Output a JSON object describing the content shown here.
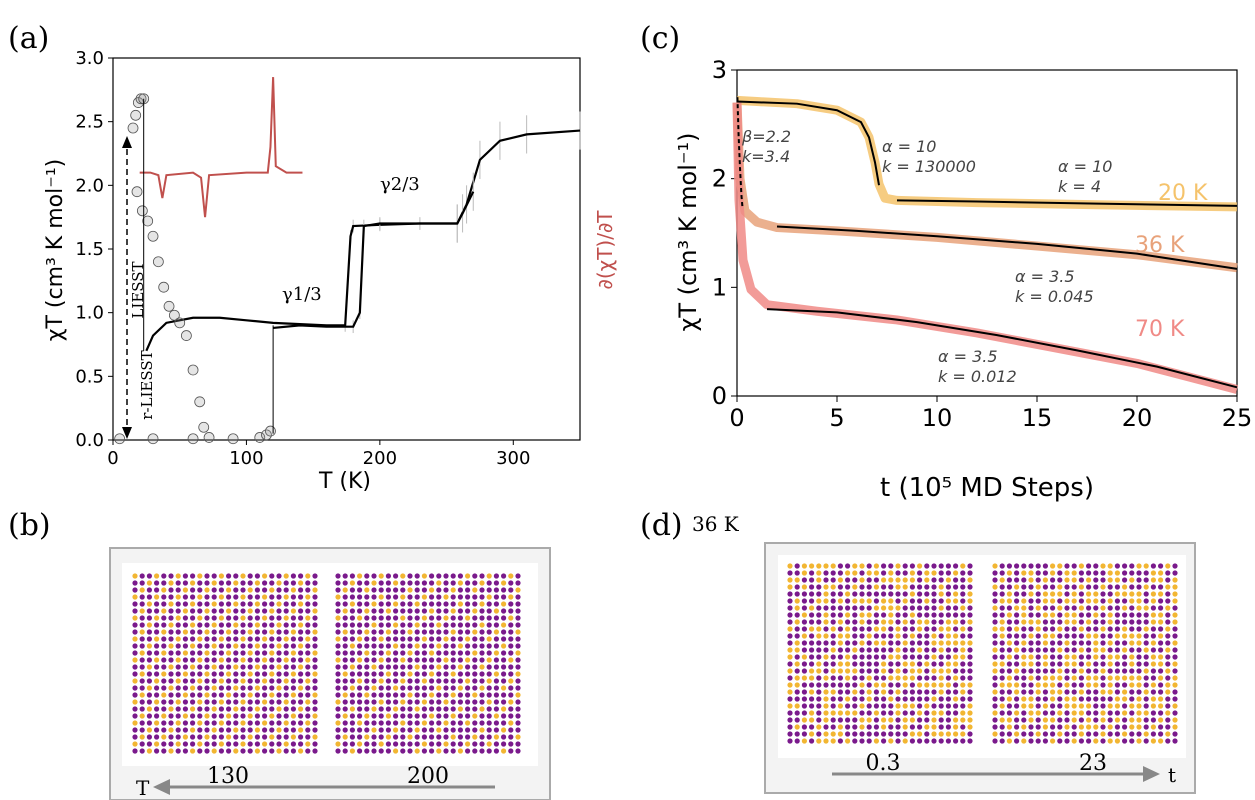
{
  "panel_labels": {
    "a": "(a)",
    "b": "(b)",
    "c": "(c)",
    "d": "(d)",
    "d_temp": "36 K"
  },
  "chart_data": [
    {
      "type": "line",
      "panel": "(a)",
      "xlabel": "T (K)",
      "ylabel": "χT (cm³ K mol⁻¹)",
      "right_label": "∂(χT)/∂T",
      "xlim": [
        0,
        350
      ],
      "ylim": [
        0,
        3.0
      ],
      "xticks": [
        "0",
        "100",
        "200",
        "300"
      ],
      "yticks": [
        "0.0",
        "0.5",
        "1.0",
        "1.5",
        "2.0",
        "2.5",
        "3.0"
      ],
      "annotations": {
        "gamma13": "γ1/3",
        "gamma23": "γ2/3",
        "liesst": "LIESST",
        "rliesst": "r-LIESST"
      },
      "series": [
        {
          "id": "cooling",
          "color": "#000000",
          "points": [
            [
              25,
              0.7
            ],
            [
              30,
              0.82
            ],
            [
              40,
              0.92
            ],
            [
              60,
              0.96
            ],
            [
              80,
              0.96
            ],
            [
              100,
              0.94
            ],
            [
              120,
              0.92
            ],
            [
              140,
              0.91
            ],
            [
              160,
              0.9
            ],
            [
              174,
              0.9
            ],
            [
              178,
              1.6
            ],
            [
              180,
              1.68
            ],
            [
              200,
              1.69
            ],
            [
              230,
              1.7
            ],
            [
              258,
              1.7
            ],
            [
              265,
              1.85
            ],
            [
              275,
              2.2
            ],
            [
              290,
              2.35
            ],
            [
              310,
              2.4
            ],
            [
              350,
              2.43
            ]
          ]
        },
        {
          "id": "heating",
          "color": "#000000",
          "points": [
            [
              120,
              0.88
            ],
            [
              140,
              0.9
            ],
            [
              160,
              0.89
            ],
            [
              180,
              0.89
            ],
            [
              185,
              1.0
            ],
            [
              188,
              1.68
            ],
            [
              200,
              1.7
            ],
            [
              258,
              1.7
            ],
            [
              262,
              1.78
            ],
            [
              270,
              1.95
            ]
          ]
        },
        {
          "id": "relax-high",
          "color": "#888888",
          "points": [
            [
              15,
              2.45
            ],
            [
              17,
              2.55
            ],
            [
              19,
              2.65
            ],
            [
              21,
              2.68
            ],
            [
              23,
              2.68
            ]
          ]
        },
        {
          "id": "relax-drop",
          "color": "#888888",
          "points": [
            [
              18,
              1.95
            ],
            [
              22,
              1.8
            ],
            [
              26,
              1.72
            ],
            [
              30,
              1.6
            ],
            [
              34,
              1.4
            ],
            [
              38,
              1.2
            ],
            [
              42,
              1.05
            ],
            [
              46,
              0.98
            ],
            [
              50,
              0.92
            ],
            [
              55,
              0.82
            ],
            [
              60,
              0.55
            ],
            [
              65,
              0.3
            ],
            [
              68,
              0.1
            ],
            [
              72,
              0.02
            ]
          ]
        },
        {
          "id": "relax-low",
          "color": "#888888",
          "points": [
            [
              5,
              0.01
            ],
            [
              30,
              0.01
            ],
            [
              60,
              0.01
            ],
            [
              90,
              0.01
            ],
            [
              110,
              0.02
            ],
            [
              115,
              0.04
            ],
            [
              118,
              0.07
            ]
          ]
        },
        {
          "id": "derivative",
          "color": "#c0504d",
          "axis": "right",
          "points": [
            [
              20,
              2.1
            ],
            [
              28,
              2.1
            ],
            [
              34,
              2.08
            ],
            [
              37,
              1.9
            ],
            [
              40,
              2.08
            ],
            [
              60,
              2.1
            ],
            [
              66,
              2.06
            ],
            [
              69,
              1.75
            ],
            [
              72,
              2.08
            ],
            [
              100,
              2.1
            ],
            [
              116,
              2.1
            ],
            [
              118,
              2.3
            ],
            [
              120,
              2.85
            ],
            [
              122,
              2.15
            ],
            [
              130,
              2.1
            ],
            [
              142,
              2.1
            ]
          ]
        }
      ]
    },
    {
      "type": "line",
      "panel": "(c)",
      "xlabel": "t (10⁵ MD Steps)",
      "ylabel": "χT (cm³ K mol⁻¹)",
      "xlim": [
        0,
        25
      ],
      "ylim": [
        0,
        3.0
      ],
      "xticks": [
        "0",
        "5",
        "10",
        "15",
        "20",
        "25"
      ],
      "yticks": [
        "0",
        "1",
        "2",
        "3"
      ],
      "series": [
        {
          "name": "20 K",
          "color": "#f5c36b",
          "points": [
            [
              0,
              2.72
            ],
            [
              1,
              2.71
            ],
            [
              3,
              2.69
            ],
            [
              5,
              2.63
            ],
            [
              6.2,
              2.52
            ],
            [
              6.6,
              2.38
            ],
            [
              6.9,
              2.15
            ],
            [
              7.1,
              1.95
            ],
            [
              7.4,
              1.82
            ],
            [
              8,
              1.8
            ],
            [
              12,
              1.78
            ],
            [
              18,
              1.76
            ],
            [
              25,
              1.74
            ]
          ]
        },
        {
          "name": "36 K",
          "color": "#e8a27a",
          "points": [
            [
              0,
              2.7
            ],
            [
              0.15,
              2.0
            ],
            [
              0.4,
              1.7
            ],
            [
              1,
              1.6
            ],
            [
              2,
              1.55
            ],
            [
              5,
              1.52
            ],
            [
              10,
              1.46
            ],
            [
              15,
              1.38
            ],
            [
              20,
              1.3
            ],
            [
              25,
              1.18
            ]
          ]
        },
        {
          "name": "70 K",
          "color": "#f08a86",
          "points": [
            [
              0,
              2.7
            ],
            [
              0.1,
              1.8
            ],
            [
              0.3,
              1.25
            ],
            [
              0.7,
              0.98
            ],
            [
              1.5,
              0.84
            ],
            [
              4,
              0.78
            ],
            [
              8,
              0.7
            ],
            [
              12,
              0.58
            ],
            [
              16,
              0.44
            ],
            [
              20,
              0.3
            ],
            [
              25,
              0.06
            ]
          ]
        }
      ],
      "fits": [
        {
          "id": "beta-fit",
          "points": [
            [
              0.02,
              2.75
            ],
            [
              0.08,
              2.4
            ],
            [
              0.15,
              2.1
            ],
            [
              0.22,
              1.85
            ],
            [
              0.28,
              1.72
            ]
          ]
        },
        {
          "id": "fit20a",
          "points": [
            [
              0,
              2.71
            ],
            [
              3,
              2.69
            ],
            [
              5,
              2.63
            ],
            [
              6.2,
              2.52
            ],
            [
              6.6,
              2.38
            ],
            [
              6.9,
              2.15
            ],
            [
              7.1,
              1.94
            ]
          ]
        },
        {
          "id": "fit20b",
          "points": [
            [
              8,
              1.8
            ],
            [
              12,
              1.79
            ],
            [
              18,
              1.77
            ],
            [
              25,
              1.75
            ]
          ]
        },
        {
          "id": "fit36",
          "points": [
            [
              2,
              1.56
            ],
            [
              6,
              1.52
            ],
            [
              10,
              1.47
            ],
            [
              15,
              1.4
            ],
            [
              20,
              1.31
            ],
            [
              25,
              1.17
            ]
          ]
        },
        {
          "id": "fit70",
          "points": [
            [
              1.5,
              0.8
            ],
            [
              5,
              0.77
            ],
            [
              9,
              0.68
            ],
            [
              13,
              0.56
            ],
            [
              17,
              0.42
            ],
            [
              21,
              0.27
            ],
            [
              25,
              0.08
            ]
          ]
        }
      ],
      "annotations": {
        "beta": "β=2.2",
        "k1": "k=3.4",
        "a1": "α = 10",
        "k2": "k = 130000",
        "a2": "α = 10",
        "k3": "k = 4",
        "a3": "α = 3.5",
        "k4": "k = 0.045",
        "a4": "α = 3.5",
        "k5": "k = 0.012"
      }
    }
  ],
  "panel_b": {
    "arrow_label": "T",
    "left_value": "130",
    "right_value": "200"
  },
  "panel_d": {
    "axis_label": "t",
    "left_value": "0.3",
    "right_value": "23"
  },
  "colors": {
    "purple": "#7a1a8c",
    "yellow": "#f2b632",
    "red": "#c0504d"
  }
}
